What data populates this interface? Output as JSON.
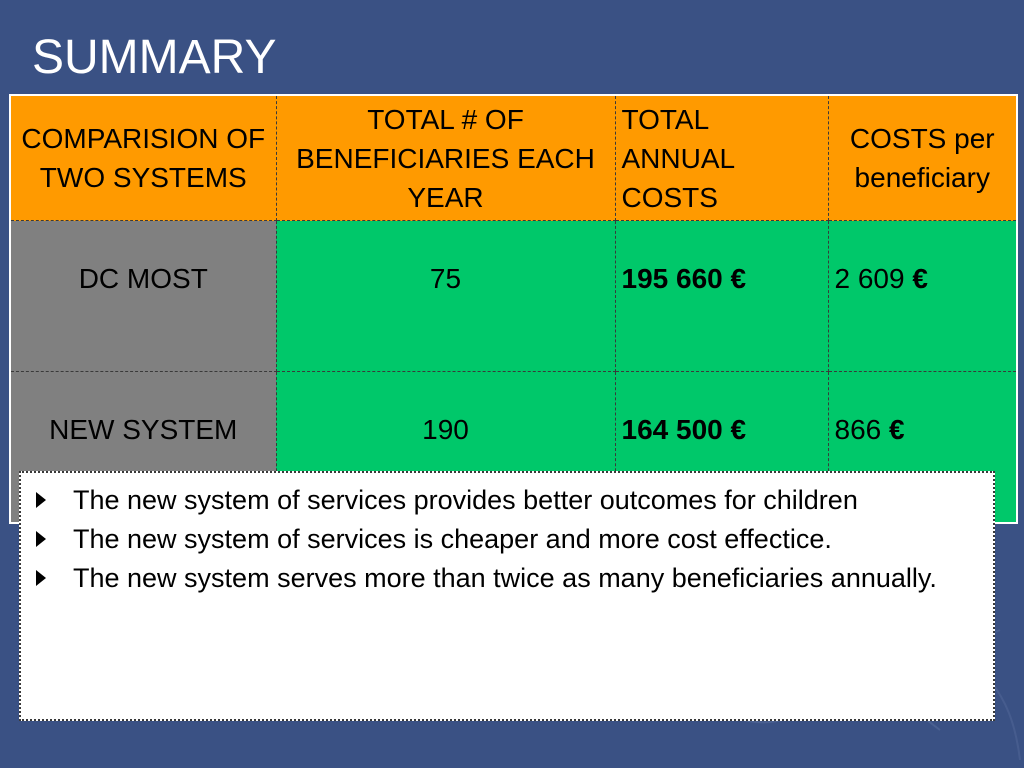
{
  "slide": {
    "title": "SUMMARY"
  },
  "table": {
    "headers": [
      "COMPARISION OF TWO SYSTEMS",
      "TOTAL # OF BENEFICIARIES EACH YEAR",
      "TOTAL ANNUAL COSTS",
      "COSTS per beneficiary"
    ],
    "rows": [
      {
        "system": "DC MOST",
        "beneficiaries": "75",
        "annual_costs": "195 660 €",
        "cost_value": "2 609",
        "cost_currency": "€"
      },
      {
        "system": "NEW SYSTEM",
        "beneficiaries": "190",
        "annual_costs": "164 500 €",
        "cost_value": "866",
        "cost_currency": "€"
      }
    ]
  },
  "bullets": [
    "The new system of services provides better outcomes for children",
    "The new system of services is cheaper and more cost effectice.",
    "The new system serves more than twice as many beneficiaries annually."
  ],
  "colors": {
    "background": "#3a5184",
    "header": "#ff9a00",
    "system_cell": "#808080",
    "data_cell": "#00c86a"
  },
  "icons": {
    "bullet": "triangle-right-icon"
  }
}
